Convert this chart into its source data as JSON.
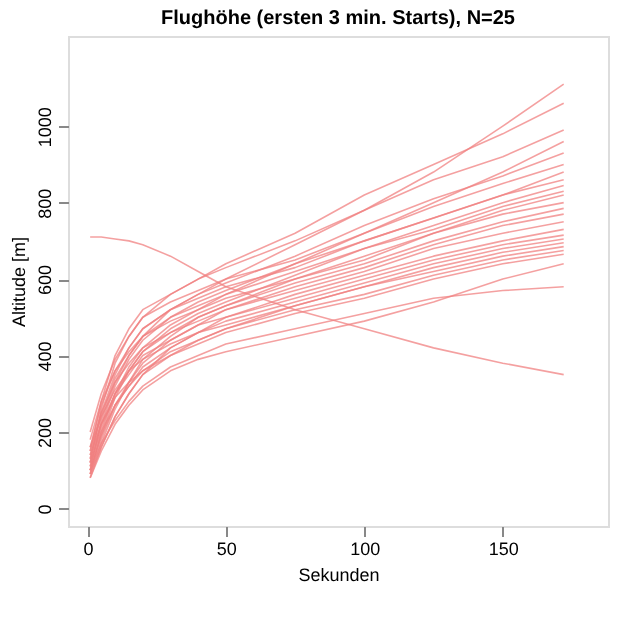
{
  "chart_data": {
    "type": "line",
    "title": "Flughöhe (ersten 3 min. Starts), N=25",
    "xlabel": "Sekunden",
    "ylabel": "Altitude [m]",
    "xlim": [
      -7,
      188
    ],
    "xticks": [
      0,
      50,
      100,
      150
    ],
    "ylim": [
      -46,
      1236
    ],
    "yticks": [
      0,
      200,
      400,
      600,
      800,
      1000
    ],
    "grid": false,
    "legend": false,
    "marker": "none",
    "line_style": "solid",
    "x": [
      1,
      5,
      10,
      15,
      20,
      30,
      40,
      50,
      75,
      100,
      125,
      150,
      172
    ],
    "series": [
      {
        "color": "#f08080",
        "values": [
          100,
          230,
          330,
          400,
          450,
          520,
          560,
          600,
          690,
          780,
          880,
          1000,
          1110
        ]
      },
      {
        "color": "#f08080",
        "values": [
          120,
          260,
          380,
          450,
          500,
          560,
          600,
          640,
          720,
          820,
          900,
          980,
          1060
        ]
      },
      {
        "color": "#f08080",
        "values": [
          150,
          280,
          400,
          470,
          520,
          560,
          600,
          630,
          700,
          780,
          860,
          920,
          990
        ]
      },
      {
        "color": "#f08080",
        "values": [
          90,
          200,
          300,
          370,
          420,
          480,
          520,
          560,
          640,
          720,
          800,
          880,
          960
        ]
      },
      {
        "color": "#f08080",
        "values": [
          130,
          250,
          350,
          420,
          470,
          520,
          560,
          590,
          660,
          740,
          810,
          870,
          930
        ]
      },
      {
        "color": "#f08080",
        "values": [
          200,
          300,
          390,
          450,
          500,
          540,
          570,
          600,
          650,
          720,
          790,
          850,
          900
        ]
      },
      {
        "color": "#f08080",
        "values": [
          110,
          220,
          320,
          390,
          440,
          500,
          540,
          570,
          640,
          700,
          760,
          820,
          880
        ]
      },
      {
        "color": "#f08080",
        "values": [
          160,
          270,
          360,
          420,
          470,
          520,
          550,
          580,
          630,
          700,
          760,
          820,
          860
        ]
      },
      {
        "color": "#f08080",
        "values": [
          100,
          190,
          290,
          360,
          410,
          470,
          510,
          540,
          610,
          680,
          740,
          800,
          845
        ]
      },
      {
        "color": "#f08080",
        "values": [
          140,
          240,
          340,
          400,
          450,
          500,
          530,
          560,
          620,
          680,
          730,
          790,
          830
        ]
      },
      {
        "color": "#f08080",
        "values": [
          90,
          170,
          260,
          330,
          390,
          450,
          500,
          530,
          600,
          660,
          720,
          780,
          820
        ]
      },
      {
        "color": "#f08080",
        "values": [
          180,
          280,
          360,
          410,
          450,
          490,
          520,
          550,
          600,
          650,
          720,
          770,
          800
        ]
      },
      {
        "color": "#f08080",
        "values": [
          120,
          210,
          300,
          360,
          410,
          460,
          500,
          530,
          590,
          640,
          700,
          750,
          785
        ]
      },
      {
        "color": "#f08080",
        "values": [
          100,
          180,
          270,
          330,
          380,
          440,
          480,
          520,
          580,
          630,
          690,
          740,
          770
        ]
      },
      {
        "color": "#f08080",
        "values": [
          150,
          250,
          330,
          380,
          420,
          460,
          490,
          520,
          570,
          620,
          680,
          720,
          750
        ]
      },
      {
        "color": "#f08080",
        "values": [
          80,
          160,
          240,
          300,
          350,
          420,
          460,
          500,
          560,
          610,
          660,
          700,
          730
        ]
      },
      {
        "color": "#f08080",
        "values": [
          130,
          220,
          300,
          350,
          400,
          440,
          480,
          500,
          550,
          600,
          650,
          690,
          715
        ]
      },
      {
        "color": "#f08080",
        "values": [
          110,
          190,
          270,
          320,
          370,
          420,
          460,
          490,
          540,
          590,
          640,
          680,
          705
        ]
      },
      {
        "color": "#f08080",
        "values": [
          160,
          240,
          310,
          360,
          390,
          430,
          460,
          480,
          530,
          580,
          630,
          670,
          695
        ]
      },
      {
        "color": "#f08080",
        "values": [
          90,
          160,
          240,
          300,
          350,
          400,
          440,
          470,
          530,
          580,
          620,
          660,
          685
        ]
      },
      {
        "color": "#f08080",
        "values": [
          120,
          200,
          270,
          320,
          360,
          410,
          440,
          470,
          520,
          560,
          610,
          650,
          675
        ]
      },
      {
        "color": "#f08080",
        "values": [
          140,
          220,
          290,
          330,
          360,
          400,
          430,
          460,
          510,
          550,
          600,
          640,
          665
        ]
      },
      {
        "color": "#f08080",
        "values": [
          80,
          150,
          220,
          270,
          310,
          360,
          390,
          410,
          450,
          490,
          540,
          600,
          640
        ]
      },
      {
        "color": "#f08080",
        "values": [
          100,
          170,
          230,
          280,
          320,
          370,
          400,
          430,
          470,
          510,
          550,
          570,
          580
        ]
      },
      {
        "color": "#f08080",
        "values": [
          710,
          710,
          705,
          700,
          690,
          660,
          620,
          580,
          520,
          470,
          420,
          380,
          350
        ]
      }
    ]
  }
}
